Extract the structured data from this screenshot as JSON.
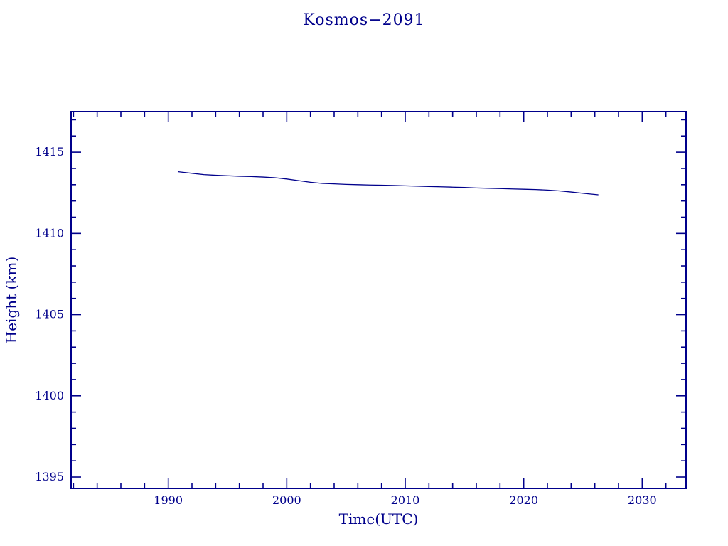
{
  "chart_data": {
    "type": "line",
    "title": "Kosmos−2091",
    "xlabel": "Time(UTC)",
    "ylabel": "Height (km)",
    "xlim": [
      1981.8,
      2033.7
    ],
    "ylim": [
      1394.3,
      1417.5
    ],
    "xticks": [
      1990,
      2000,
      2010,
      2020,
      2030
    ],
    "yticks": [
      1395,
      1400,
      1405,
      1410,
      1415
    ],
    "x_minor_step": 2,
    "y_minor_step": 1,
    "grid": false,
    "legend": "none",
    "line_color": "#00008b",
    "frame_color": "#00008b",
    "series": [
      {
        "name": "Kosmos-2091 orbital height",
        "x": [
          1990.8,
          1992,
          1993,
          1994,
          1995,
          1996,
          1997,
          1998,
          1999,
          2000,
          2001,
          2002,
          2003,
          2004,
          2005,
          2006,
          2007,
          2008,
          2009,
          2010,
          2011,
          2012,
          2013,
          2014,
          2015,
          2016,
          2017,
          2018,
          2019,
          2020,
          2021,
          2022,
          2023,
          2024,
          2025,
          2026.3
        ],
        "y": [
          1413.8,
          1413.7,
          1413.62,
          1413.58,
          1413.55,
          1413.52,
          1413.5,
          1413.47,
          1413.43,
          1413.35,
          1413.25,
          1413.15,
          1413.08,
          1413.05,
          1413.02,
          1413.0,
          1412.98,
          1412.97,
          1412.95,
          1412.93,
          1412.91,
          1412.89,
          1412.87,
          1412.85,
          1412.83,
          1412.8,
          1412.78,
          1412.76,
          1412.74,
          1412.72,
          1412.7,
          1412.67,
          1412.62,
          1412.55,
          1412.47,
          1412.38
        ]
      }
    ]
  }
}
